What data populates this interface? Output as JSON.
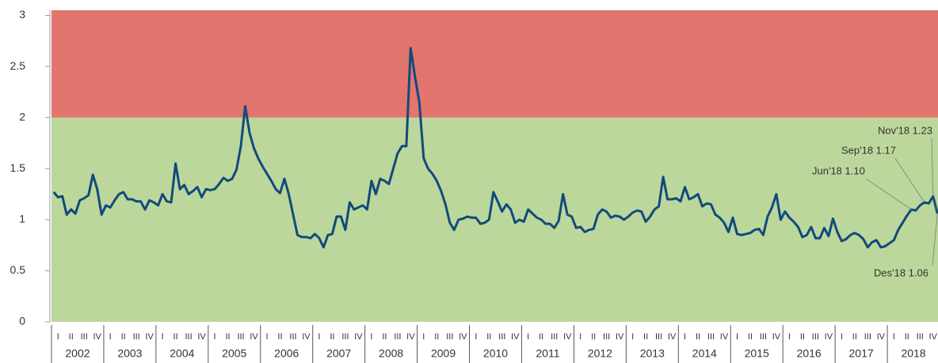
{
  "chart_data": {
    "type": "line",
    "years": [
      "2002",
      "2003",
      "2004",
      "2005",
      "2006",
      "2007",
      "2008",
      "2009",
      "2010",
      "2011",
      "2012",
      "2013",
      "2014",
      "2015",
      "2016",
      "2017",
      "2018"
    ],
    "quarters": [
      "I",
      "II",
      "III",
      "IV"
    ],
    "series": [
      {
        "color": "#124a7c",
        "values": [
          1.27,
          1.22,
          1.23,
          1.05,
          1.1,
          1.06,
          1.19,
          1.21,
          1.24,
          1.44,
          1.3,
          1.05,
          1.14,
          1.12,
          1.19,
          1.25,
          1.27,
          1.2,
          1.2,
          1.18,
          1.18,
          1.1,
          1.19,
          1.17,
          1.14,
          1.25,
          1.18,
          1.17,
          1.55,
          1.3,
          1.34,
          1.25,
          1.28,
          1.32,
          1.22,
          1.3,
          1.29,
          1.3,
          1.35,
          1.41,
          1.38,
          1.4,
          1.49,
          1.72,
          2.11,
          1.85,
          1.7,
          1.6,
          1.52,
          1.45,
          1.38,
          1.3,
          1.26,
          1.4,
          1.25,
          1.05,
          0.85,
          0.83,
          0.83,
          0.82,
          0.86,
          0.82,
          0.73,
          0.85,
          0.86,
          1.03,
          1.03,
          0.9,
          1.17,
          1.1,
          1.12,
          1.14,
          1.1,
          1.38,
          1.25,
          1.4,
          1.38,
          1.35,
          1.5,
          1.65,
          1.72,
          1.72,
          2.68,
          2.4,
          2.15,
          1.6,
          1.5,
          1.45,
          1.38,
          1.28,
          1.15,
          0.97,
          0.9,
          1.0,
          1.01,
          1.03,
          1.02,
          1.02,
          0.96,
          0.97,
          1.0,
          1.27,
          1.18,
          1.08,
          1.15,
          1.1,
          0.97,
          1.0,
          0.98,
          1.1,
          1.06,
          1.02,
          1.0,
          0.96,
          0.96,
          0.92,
          0.99,
          1.25,
          1.05,
          1.03,
          0.92,
          0.93,
          0.88,
          0.9,
          0.91,
          1.05,
          1.1,
          1.08,
          1.02,
          1.04,
          1.03,
          1.0,
          1.03,
          1.07,
          1.09,
          1.08,
          0.98,
          1.03,
          1.1,
          1.13,
          1.42,
          1.2,
          1.2,
          1.21,
          1.18,
          1.32,
          1.2,
          1.22,
          1.25,
          1.13,
          1.16,
          1.15,
          1.05,
          1.02,
          0.97,
          0.88,
          1.02,
          0.86,
          0.85,
          0.86,
          0.87,
          0.9,
          0.91,
          0.85,
          1.03,
          1.12,
          1.25,
          1.0,
          1.08,
          1.02,
          0.98,
          0.93,
          0.83,
          0.85,
          0.93,
          0.82,
          0.82,
          0.92,
          0.84,
          1.01,
          0.88,
          0.79,
          0.81,
          0.85,
          0.87,
          0.85,
          0.81,
          0.73,
          0.78,
          0.8,
          0.73,
          0.74,
          0.77,
          0.8,
          0.9,
          0.97,
          1.04,
          1.1,
          1.09,
          1.14,
          1.17,
          1.16,
          1.23,
          1.06
        ]
      }
    ],
    "ylim": [
      0,
      3.05
    ],
    "yticks": [
      0,
      0.5,
      1,
      1.5,
      2,
      2.5,
      3
    ],
    "bands": [
      {
        "range": [
          0,
          2
        ],
        "color": "#bcd79b"
      },
      {
        "range": [
          2,
          3.05
        ],
        "color": "#e2756e"
      }
    ],
    "annotations": [
      "Nov'18 1.23",
      "Sep'18 1.17",
      "Jun'18 1.10",
      "Des'18 1.06"
    ]
  }
}
